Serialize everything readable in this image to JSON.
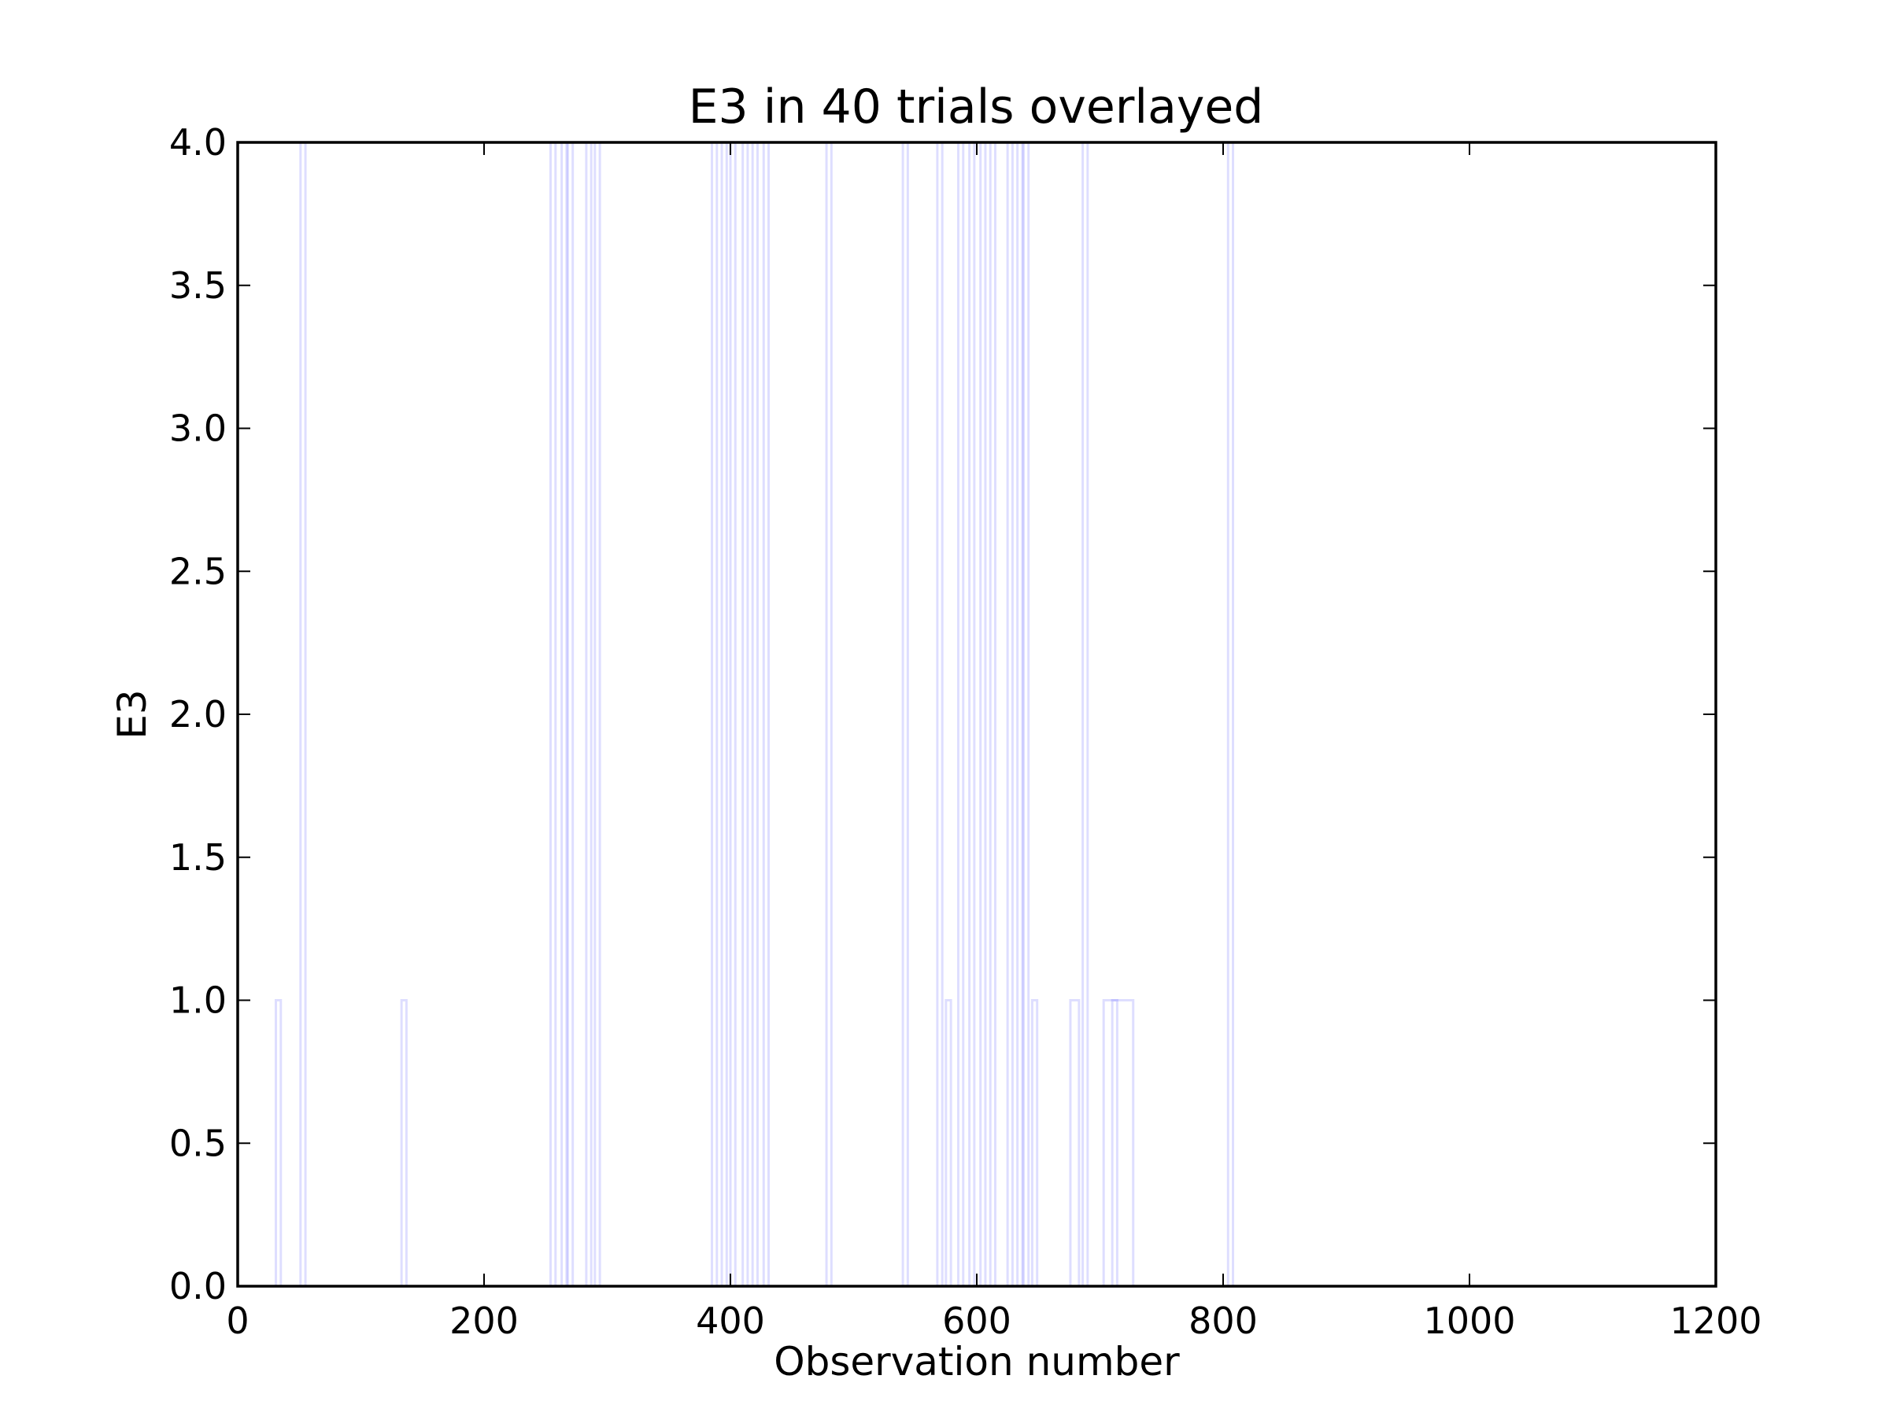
{
  "chart_data": {
    "type": "line",
    "title": "E3 in 40 trials overlayed",
    "xlabel": "Observation number",
    "ylabel": "E3",
    "xlim": [
      0,
      1200
    ],
    "ylim": [
      0.0,
      4.0
    ],
    "x_ticks": [
      "0",
      "200",
      "400",
      "600",
      "800",
      "1000",
      "1200"
    ],
    "y_ticks": [
      "0.0",
      "0.5",
      "1.0",
      "1.5",
      "2.0",
      "2.5",
      "3.0",
      "3.5",
      "4.0"
    ],
    "legend": "none",
    "grid": false,
    "line_color": "#0000ff",
    "note_values": "Each pulse is [start, end, height] in observation-number units; each trial is a step trace at 0 elsewhere.",
    "series": [
      {
        "pulses": [
          [
            31,
            35,
            1
          ],
          [
            263,
            267,
            4
          ]
        ]
      },
      {
        "pulses": [
          [
            51,
            55,
            4
          ]
        ]
      },
      {
        "pulses": [
          [
            133,
            137,
            1
          ]
        ]
      },
      {
        "pulses": [
          [
            254,
            258,
            4
          ]
        ]
      },
      {
        "pulses": [
          [
            268,
            272,
            4
          ]
        ]
      },
      {
        "pulses": [
          [
            283,
            287,
            4
          ]
        ]
      },
      {
        "pulses": [
          [
            290,
            294,
            4
          ]
        ]
      },
      {
        "pulses": [
          [
            385,
            389,
            4
          ]
        ]
      },
      {
        "pulses": [
          [
            393,
            397,
            4
          ]
        ]
      },
      {
        "pulses": [
          [
            400,
            404,
            4
          ]
        ]
      },
      {
        "pulses": [
          [
            410,
            414,
            4
          ]
        ]
      },
      {
        "pulses": [
          [
            418,
            422,
            4
          ]
        ]
      },
      {
        "pulses": [
          [
            427,
            431,
            4
          ]
        ]
      },
      {
        "pulses": [
          [
            478,
            482,
            4
          ]
        ]
      },
      {
        "pulses": [
          [
            540,
            544,
            4
          ]
        ]
      },
      {
        "pulses": [
          [
            568,
            572,
            4
          ],
          [
            575,
            579,
            1
          ]
        ]
      },
      {
        "pulses": [
          [
            585,
            589,
            4
          ]
        ]
      },
      {
        "pulses": [
          [
            594,
            598,
            4
          ]
        ]
      },
      {
        "pulses": [
          [
            603,
            607,
            4
          ]
        ]
      },
      {
        "pulses": [
          [
            611,
            615,
            4
          ]
        ]
      },
      {
        "pulses": [
          [
            625,
            629,
            4
          ]
        ]
      },
      {
        "pulses": [
          [
            633,
            637,
            4
          ]
        ]
      },
      {
        "pulses": [
          [
            638,
            642,
            4
          ]
        ]
      },
      {
        "pulses": [
          [
            645,
            649,
            1
          ]
        ]
      },
      {
        "pulses": [
          [
            676,
            683,
            1
          ]
        ]
      },
      {
        "pulses": [
          [
            686,
            690,
            4
          ]
        ]
      },
      {
        "pulses": [
          [
            703,
            714,
            1
          ]
        ]
      },
      {
        "pulses": [
          [
            710,
            727,
            1
          ]
        ]
      },
      {
        "pulses": [
          [
            804,
            808,
            4
          ]
        ]
      },
      {
        "pulses": []
      },
      {
        "pulses": []
      },
      {
        "pulses": []
      },
      {
        "pulses": []
      },
      {
        "pulses": []
      },
      {
        "pulses": []
      },
      {
        "pulses": []
      },
      {
        "pulses": []
      },
      {
        "pulses": []
      },
      {
        "pulses": []
      },
      {
        "pulses": []
      }
    ]
  }
}
